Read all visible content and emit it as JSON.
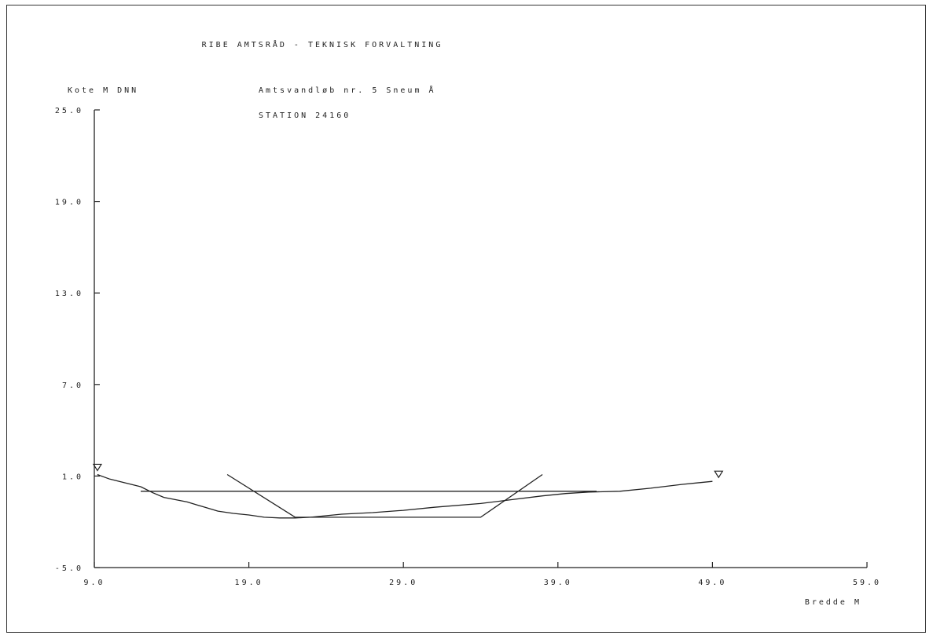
{
  "header": {
    "title": "RIBE AMTSRÅD - TEKNISK FORVALTNING",
    "watercourse": "Amtsvandløb nr. 5 Sneum Å",
    "station": "STATION  24160"
  },
  "chart_data": {
    "type": "line",
    "ylabel": "Kote M DNN",
    "xlabel": "Bredde M",
    "xlim": [
      9.0,
      59.0
    ],
    "ylim": [
      -5.0,
      25.0
    ],
    "x_ticks": [
      "9.0",
      "19.0",
      "29.0",
      "39.0",
      "49.0",
      "59.0"
    ],
    "y_ticks": [
      "25.0",
      "19.0",
      "13.0",
      "7.0",
      "1.0",
      "-5.0"
    ],
    "series": [
      {
        "role": "terrain-profile",
        "points": [
          [
            9.2,
            1.1
          ],
          [
            10.0,
            0.8
          ],
          [
            11.0,
            0.55
          ],
          [
            12.0,
            0.3
          ],
          [
            12.8,
            -0.1
          ],
          [
            13.5,
            -0.4
          ],
          [
            15.0,
            -0.7
          ],
          [
            16.0,
            -1.0
          ],
          [
            17.0,
            -1.3
          ],
          [
            18.0,
            -1.45
          ],
          [
            19.0,
            -1.55
          ],
          [
            20.0,
            -1.7
          ],
          [
            21.0,
            -1.75
          ],
          [
            22.0,
            -1.75
          ],
          [
            23.0,
            -1.7
          ],
          [
            25.0,
            -1.5
          ],
          [
            27.0,
            -1.4
          ],
          [
            29.0,
            -1.25
          ],
          [
            31.0,
            -1.05
          ],
          [
            34.0,
            -0.8
          ],
          [
            36.0,
            -0.55
          ],
          [
            38.0,
            -0.3
          ],
          [
            39.5,
            -0.15
          ],
          [
            41.0,
            -0.05
          ],
          [
            43.0,
            0.0
          ],
          [
            45.0,
            0.2
          ],
          [
            47.0,
            0.45
          ],
          [
            49.0,
            0.65
          ]
        ]
      },
      {
        "role": "design-profile",
        "points": [
          [
            17.6,
            1.1
          ],
          [
            22.0,
            -1.7
          ],
          [
            34.0,
            -1.7
          ],
          [
            38.0,
            1.1
          ]
        ]
      },
      {
        "role": "water-level",
        "points": [
          [
            12.0,
            0.0
          ],
          [
            41.5,
            0.0
          ]
        ]
      }
    ],
    "markers": [
      {
        "symbol": "▽",
        "x": 9.2,
        "y": 1.1
      },
      {
        "symbol": "▽",
        "x": 49.4,
        "y": 0.65
      }
    ]
  }
}
